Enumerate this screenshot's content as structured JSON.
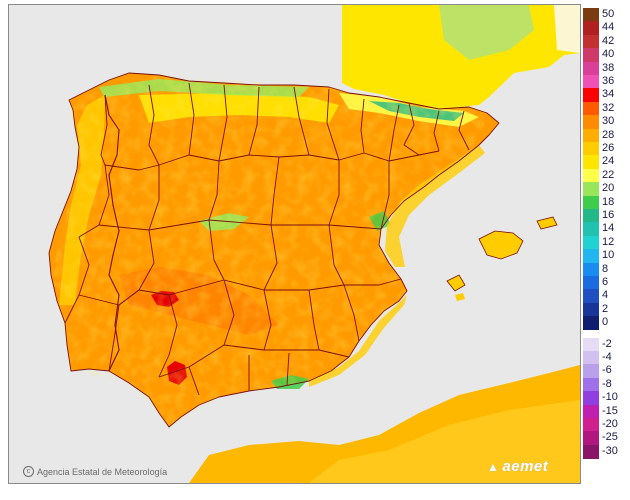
{
  "credit": {
    "text": "Agencia Estatal de Meteorología",
    "icon": "copyright-icon"
  },
  "logo": {
    "text": "aemet",
    "icon": "aemet-logo-icon"
  },
  "map": {
    "regions": [
      "Iberian Peninsula",
      "Balearic Islands",
      "North Africa"
    ],
    "palette": {
      "sea": "#e8e8e8",
      "land_outside": "#fdf6d2",
      "base_temperature_color": "#ff9a00",
      "hot_spot_color": "#e60000",
      "cool_mountain_color": "#9fdc8a",
      "border_color": "#7a1010"
    }
  },
  "legend": {
    "positive": [
      {
        "label": "50",
        "color": "#7a3b10"
      },
      {
        "label": "44",
        "color": "#b02020"
      },
      {
        "label": "42",
        "color": "#c23030"
      },
      {
        "label": "40",
        "color": "#d03a6a"
      },
      {
        "label": "38",
        "color": "#d94098"
      },
      {
        "label": "36",
        "color": "#f051b5"
      },
      {
        "label": "34",
        "color": "#ff0000"
      },
      {
        "label": "32",
        "color": "#ff5a00"
      },
      {
        "label": "30",
        "color": "#ff8c00"
      },
      {
        "label": "28",
        "color": "#ffad00"
      },
      {
        "label": "26",
        "color": "#ffcc00"
      },
      {
        "label": "24",
        "color": "#ffe600"
      },
      {
        "label": "22",
        "color": "#ffff4a"
      },
      {
        "label": "20",
        "color": "#9ae65a"
      },
      {
        "label": "18",
        "color": "#3ecc4a"
      },
      {
        "label": "16",
        "color": "#22b888"
      },
      {
        "label": "14",
        "color": "#22c2b0"
      },
      {
        "label": "12",
        "color": "#22d2d2"
      },
      {
        "label": "10",
        "color": "#22b6f0"
      },
      {
        "label": "8",
        "color": "#1a8cf0"
      },
      {
        "label": "6",
        "color": "#1a6ae0"
      },
      {
        "label": "4",
        "color": "#2050c0"
      },
      {
        "label": "2",
        "color": "#1a3598"
      },
      {
        "label": "0",
        "color": "#101e70"
      }
    ],
    "negative": [
      {
        "label": "-2",
        "color": "#e6dcf6"
      },
      {
        "label": "-4",
        "color": "#d2c0f0"
      },
      {
        "label": "-6",
        "color": "#b8a0ea"
      },
      {
        "label": "-8",
        "color": "#a070e8"
      },
      {
        "label": "-10",
        "color": "#9040e0"
      },
      {
        "label": "-15",
        "color": "#c020b0"
      },
      {
        "label": "-20",
        "color": "#d02090"
      },
      {
        "label": "-25",
        "color": "#b01880"
      },
      {
        "label": "-30",
        "color": "#8a1468"
      }
    ]
  }
}
